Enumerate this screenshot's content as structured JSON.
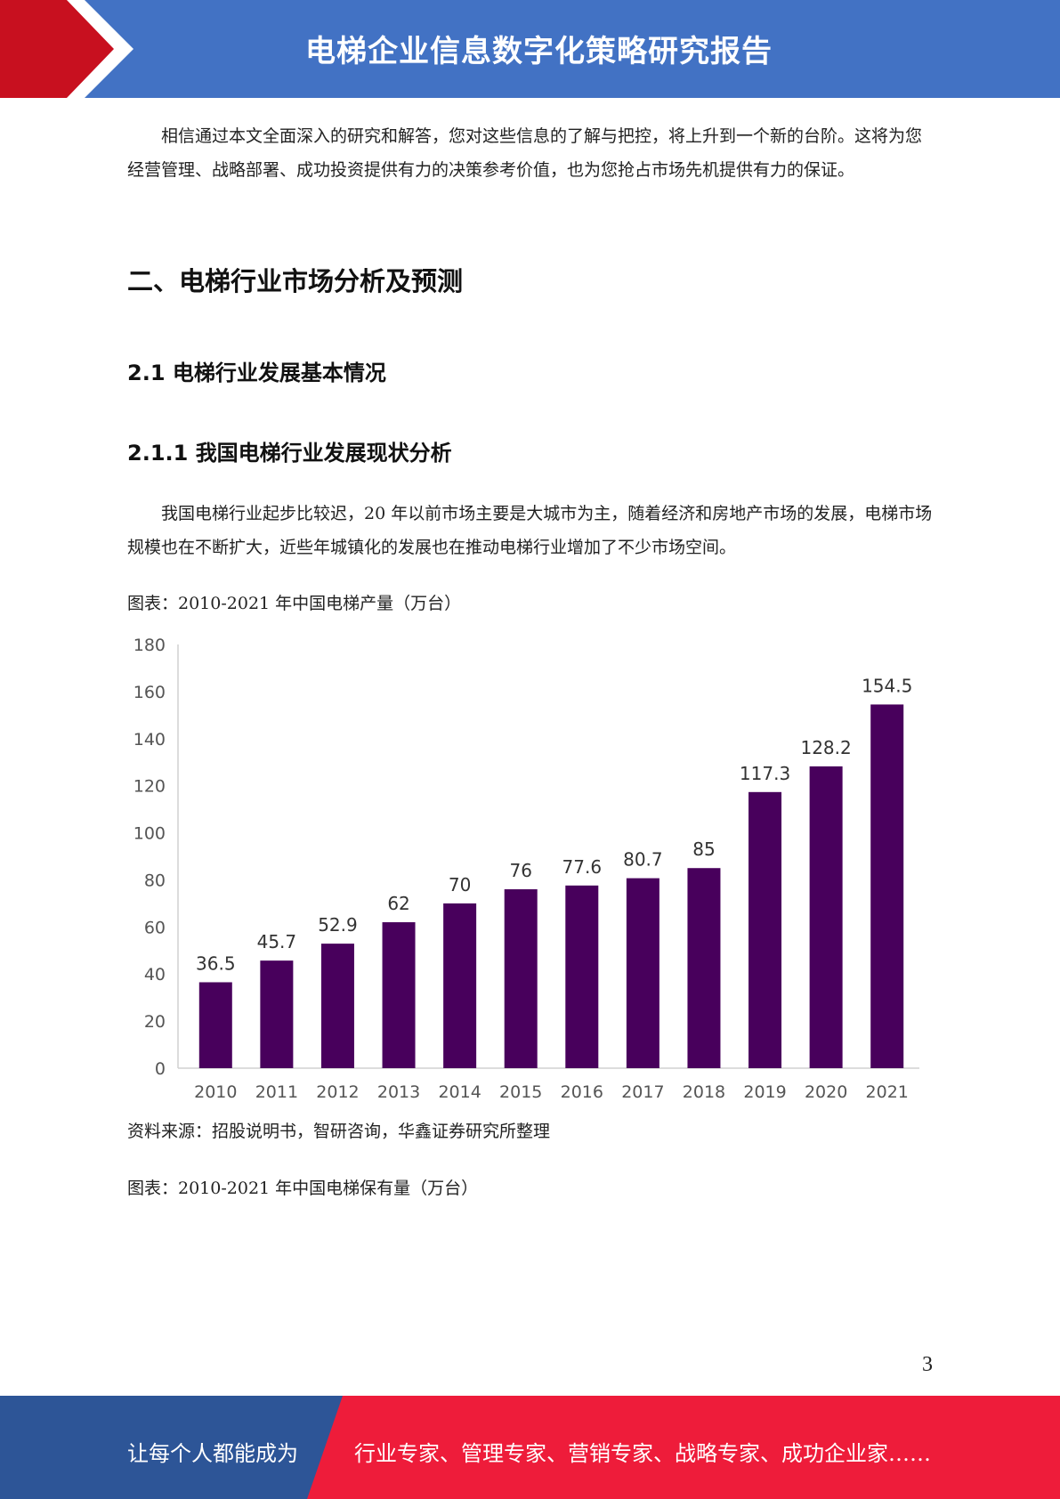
{
  "header": {
    "title": "电梯企业信息数字化策略研究报告",
    "bg_color": "#4272c4",
    "accent_color": "#c8101f"
  },
  "intro_paragraph": "相信通过本文全面深入的研究和解答，您对这些信息的了解与把控，将上升到一个新的台阶。这将为您经营管理、战略部署、成功投资提供有力的决策参考价值，也为您抢占市场先机提供有力的保证。",
  "section_title": "二、电梯行业市场分析及预测",
  "subsection_title": "2.1  电梯行业发展基本情况",
  "subsubsection_title": "2.1.1  我国电梯行业发展现状分析",
  "body_paragraph": "我国电梯行业起步比较迟，20 年以前市场主要是大城市为主，随着经济和房地产市场的发展，电梯市场规模也在不断扩大，近些年城镇化的发展也在推动电梯行业增加了不少市场空间。",
  "figure1_caption": "图表：2010-2021 年中国电梯产量（万台）",
  "chart_data": {
    "type": "bar",
    "categories": [
      "2010",
      "2011",
      "2012",
      "2013",
      "2014",
      "2015",
      "2016",
      "2017",
      "2018",
      "2019",
      "2020",
      "2021"
    ],
    "values": [
      36.5,
      45.7,
      52.9,
      62,
      70,
      76,
      77.6,
      80.7,
      85,
      117.3,
      128.2,
      154.5
    ],
    "data_labels": [
      "36.5",
      "45.7",
      "52.9",
      "62",
      "70",
      "76",
      "77.6",
      "80.7",
      "85",
      "117.3",
      "128.2",
      "154.5"
    ],
    "y_ticks": [
      "0",
      "20",
      "40",
      "60",
      "80",
      "100",
      "120",
      "140",
      "160",
      "180"
    ],
    "ylim": [
      0,
      180
    ],
    "grid": false,
    "bar_color": "#48005c"
  },
  "source_note": "资料来源：招股说明书，智研咨询，华鑫证券研究所整理",
  "figure2_caption": "图表：2010-2021 年中国电梯保有量（万台）",
  "page_number": "3",
  "footer": {
    "left_text": "让每个人都能成为",
    "right_text": "行业专家、管理专家、营销专家、战略专家、成功企业家……",
    "left_color": "#2d5597",
    "right_color": "#ee1c3a"
  }
}
